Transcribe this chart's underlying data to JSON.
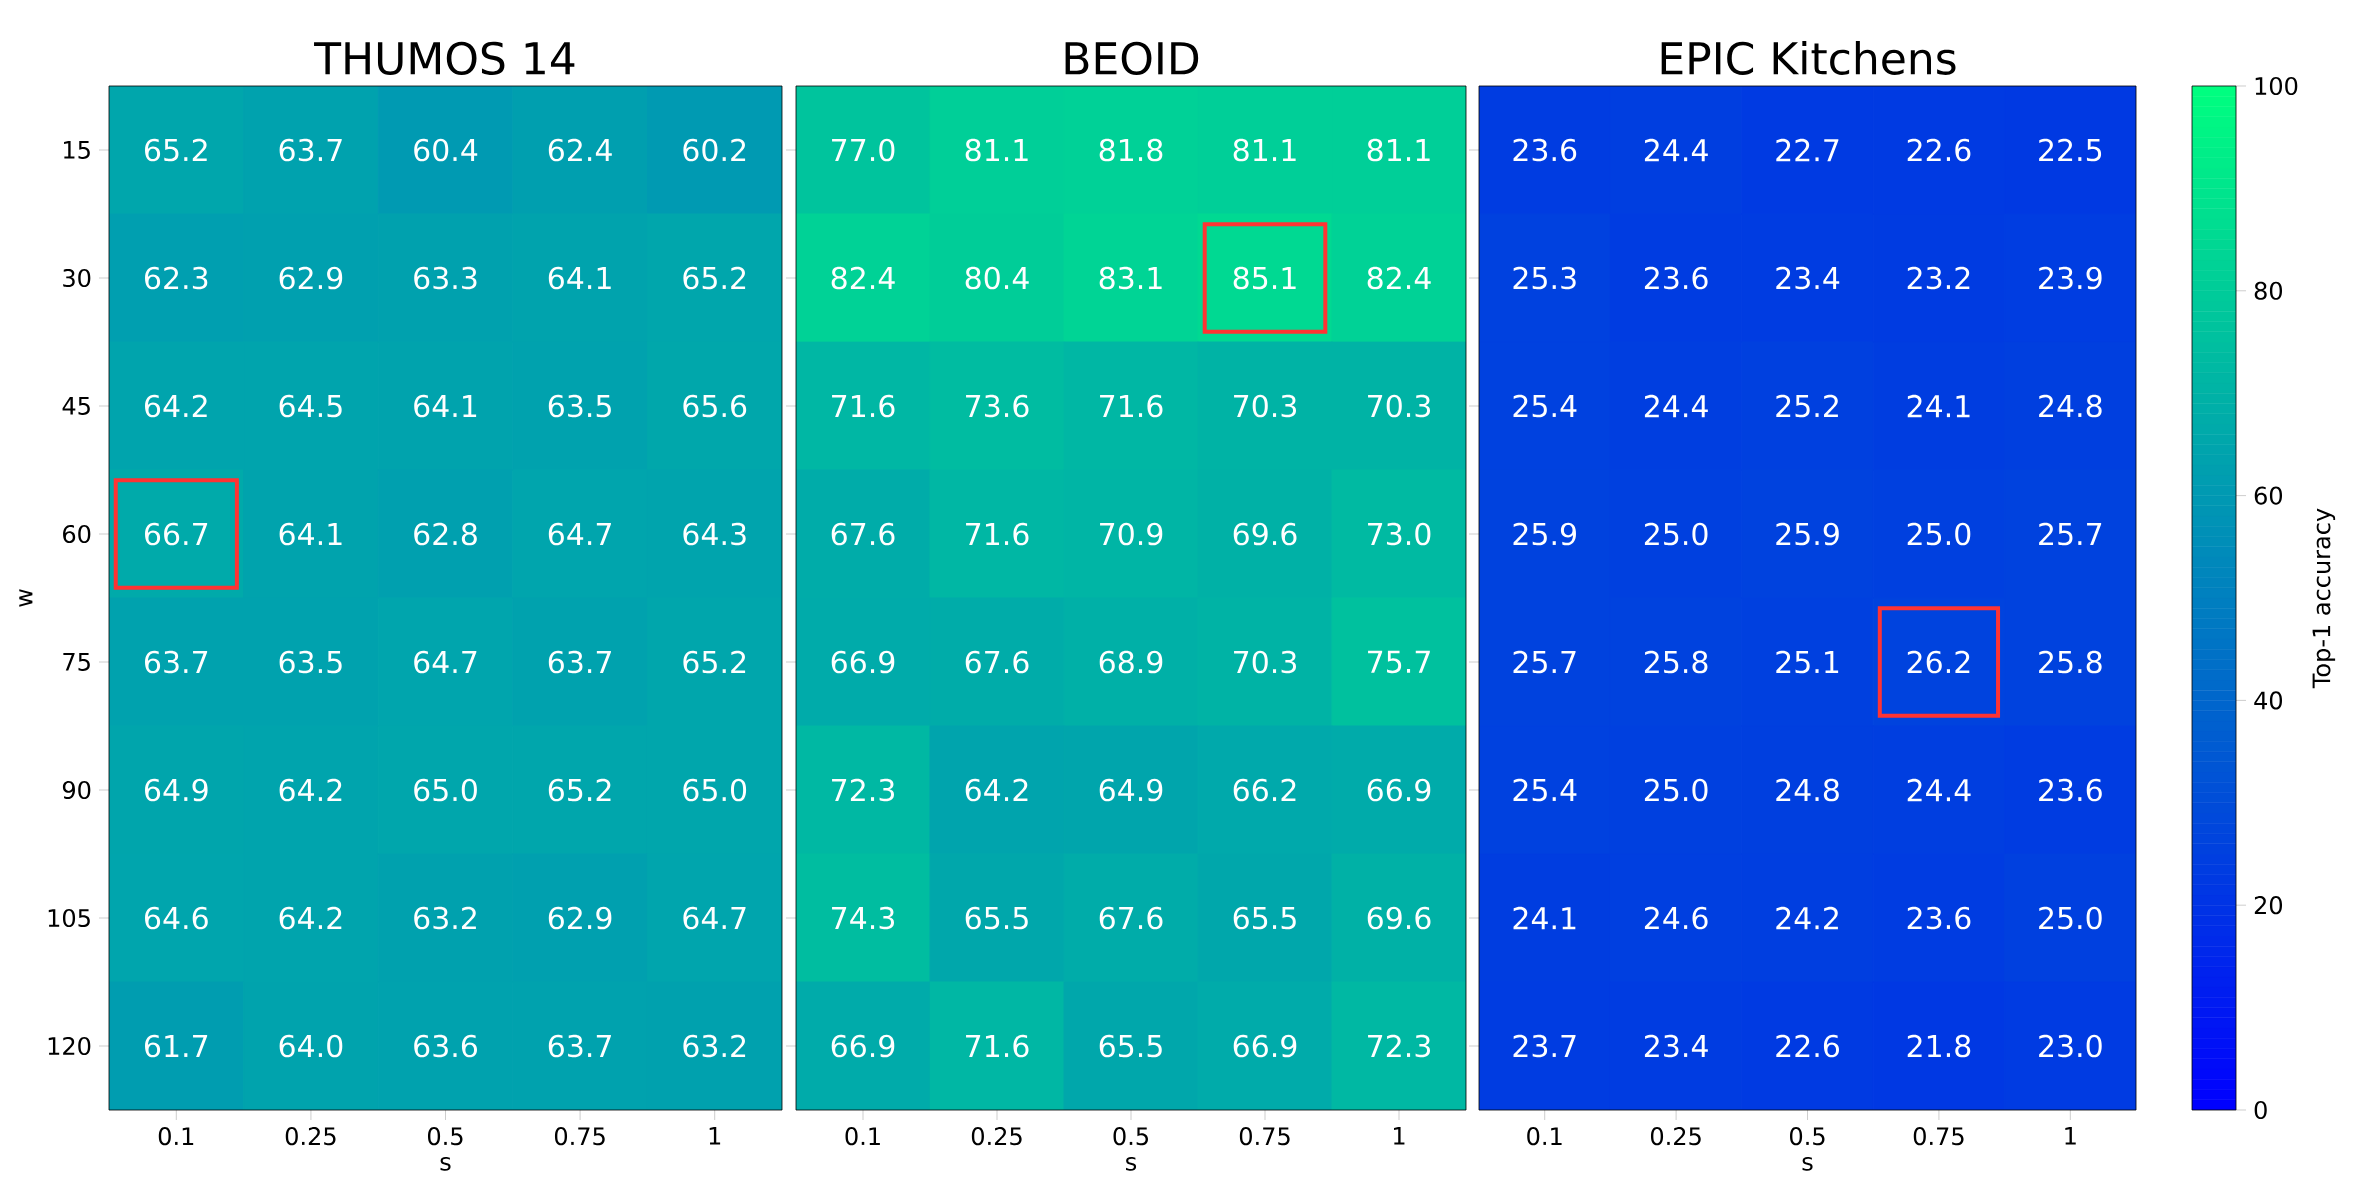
{
  "chart_data": [
    {
      "type": "heatmap",
      "title": "THUMOS 14",
      "xlabel": "s",
      "ylabel": "w",
      "categories": [
        "0.1",
        "0.25",
        "0.5",
        "0.75",
        "1"
      ],
      "y_categories": [
        "15",
        "30",
        "45",
        "60",
        "75",
        "90",
        "105",
        "120"
      ],
      "cells": [
        [
          65.2,
          63.7,
          60.4,
          62.4,
          60.2
        ],
        [
          62.3,
          62.9,
          63.3,
          64.1,
          65.2
        ],
        [
          64.2,
          64.5,
          64.1,
          63.5,
          65.6
        ],
        [
          66.7,
          64.1,
          62.8,
          64.7,
          64.3
        ],
        [
          63.7,
          63.5,
          64.7,
          63.7,
          65.2
        ],
        [
          64.9,
          64.2,
          65.0,
          65.2,
          65.0
        ],
        [
          64.6,
          64.2,
          63.2,
          62.9,
          64.7
        ],
        [
          61.7,
          64.0,
          63.6,
          63.7,
          63.2
        ]
      ],
      "cell_labels": [
        [
          "65.2",
          "63.7",
          "60.4",
          "62.4",
          "60.2"
        ],
        [
          "62.3",
          "62.9",
          "63.3",
          "64.1",
          "65.2"
        ],
        [
          "64.2",
          "64.5",
          "64.1",
          "63.5",
          "65.6"
        ],
        [
          "66.7",
          "64.1",
          "62.8",
          "64.7",
          "64.3"
        ],
        [
          "63.7",
          "63.5",
          "64.7",
          "63.7",
          "65.2"
        ],
        [
          "64.9",
          "64.2",
          "65.0",
          "65.2",
          "65.0"
        ],
        [
          "64.6",
          "64.2",
          "63.2",
          "62.9",
          "64.7"
        ],
        [
          "61.7",
          "64.0",
          "63.6",
          "63.7",
          "63.2"
        ]
      ]
    },
    {
      "type": "heatmap",
      "title": "BEOID",
      "xlabel": "s",
      "categories": [
        "0.1",
        "0.25",
        "0.5",
        "0.75",
        "1"
      ],
      "y_categories": [
        "15",
        "30",
        "45",
        "60",
        "75",
        "90",
        "105",
        "120"
      ],
      "cells": [
        [
          77.0,
          81.1,
          81.8,
          81.1,
          81.1
        ],
        [
          82.4,
          80.4,
          83.1,
          85.1,
          82.4
        ],
        [
          71.6,
          73.6,
          71.6,
          70.3,
          70.3
        ],
        [
          67.6,
          71.6,
          70.9,
          69.6,
          73.0
        ],
        [
          66.9,
          67.6,
          68.9,
          70.3,
          75.7
        ],
        [
          72.3,
          64.2,
          64.9,
          66.2,
          66.9
        ],
        [
          74.3,
          65.5,
          67.6,
          65.5,
          69.6
        ],
        [
          66.9,
          71.6,
          65.5,
          66.9,
          72.3
        ]
      ],
      "cell_labels": [
        [
          "77.0",
          "81.1",
          "81.8",
          "81.1",
          "81.1"
        ],
        [
          "82.4",
          "80.4",
          "83.1",
          "85.1",
          "82.4"
        ],
        [
          "71.6",
          "73.6",
          "71.6",
          "70.3",
          "70.3"
        ],
        [
          "67.6",
          "71.6",
          "70.9",
          "69.6",
          "73.0"
        ],
        [
          "66.9",
          "67.6",
          "68.9",
          "70.3",
          "75.7"
        ],
        [
          "72.3",
          "64.2",
          "64.9",
          "66.2",
          "66.9"
        ],
        [
          "74.3",
          "65.5",
          "67.6",
          "65.5",
          "69.6"
        ],
        [
          "66.9",
          "71.6",
          "65.5",
          "66.9",
          "72.3"
        ]
      ],
      "tick_labels": "x"
    },
    {
      "type": "heatmap",
      "title": "EPIC Kitchens",
      "xlabel": "s",
      "categories": [
        "0.1",
        "0.25",
        "0.5",
        "0.75",
        "1"
      ],
      "y_categories": [
        "15",
        "30",
        "45",
        "60",
        "75",
        "90",
        "105",
        "120"
      ],
      "cells": [
        [
          23.6,
          24.4,
          22.7,
          22.6,
          22.5
        ],
        [
          25.3,
          23.6,
          23.4,
          23.2,
          23.9
        ],
        [
          25.4,
          24.4,
          25.2,
          24.1,
          24.8
        ],
        [
          25.9,
          25.0,
          25.9,
          25.0,
          25.7
        ],
        [
          25.7,
          25.8,
          25.1,
          26.2,
          25.8
        ],
        [
          25.4,
          25.0,
          24.8,
          24.4,
          23.6
        ],
        [
          24.1,
          24.6,
          24.2,
          23.6,
          25.0
        ],
        [
          23.7,
          23.4,
          22.6,
          21.8,
          23.0
        ]
      ],
      "cell_labels": [
        [
          "23.6",
          "24.4",
          "22.7",
          "22.6",
          "22.5"
        ],
        [
          "25.3",
          "23.6",
          "23.4",
          "23.2",
          "23.9"
        ],
        [
          "25.4",
          "24.4",
          "25.2",
          "24.1",
          "24.8"
        ],
        [
          "25.9",
          "25.0",
          "25.9",
          "25.0",
          "25.7"
        ],
        [
          "25.7",
          "25.8",
          "25.1",
          "26.2",
          "25.8"
        ],
        [
          "25.4",
          "25.0",
          "24.8",
          "24.4",
          "23.6"
        ],
        [
          "24.1",
          "24.6",
          "24.2",
          "23.6",
          "25.0"
        ],
        [
          "23.7",
          "23.4",
          "22.6",
          "21.8",
          "23.0"
        ]
      ],
      "clim": [
        0,
        100
      ],
      "cticks": [
        0,
        20,
        40,
        60,
        80,
        100
      ],
      "clabel": "Top-1 accuracy",
      "tick_labels": "x"
    }
  ]
}
